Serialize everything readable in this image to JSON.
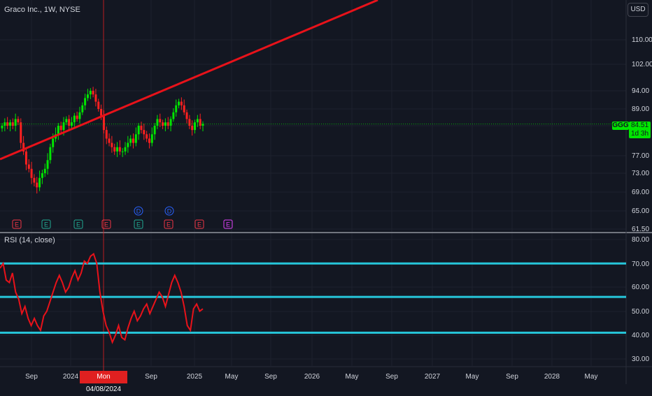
{
  "chart_title": "Graco Inc., 1W, NYSE",
  "currency_button": "USD",
  "symbol": "GGG",
  "last_price": "84.51",
  "countdown": "1d 3h",
  "crosshair_date": "Mon 04/08/2024",
  "price_axis": [
    "110.00",
    "102.00",
    "94.00",
    "89.00",
    "84.00",
    "77.00",
    "73.00",
    "69.00",
    "65.00",
    "61.50"
  ],
  "rsi_title": "RSI (14, close)",
  "rsi_axis": [
    "80.00",
    "70.00",
    "60.00",
    "50.00",
    "40.00",
    "30.00"
  ],
  "time_axis": [
    "Sep",
    "2024",
    "Sep",
    "2025",
    "May",
    "Sep",
    "2026",
    "May",
    "Sep",
    "2027",
    "May",
    "Sep",
    "2028",
    "May"
  ],
  "colors": {
    "background": "#131722",
    "up_candle": "#00e600",
    "down_candle": "#ff2020",
    "trendline": "#e8121a",
    "rsi_line": "#e8121a",
    "rsi_levels": "#26c6da",
    "earnings_marker_past": "#2962ff",
    "earnings_marker_up": "#22ab94",
    "earnings_marker_down": "#f23645",
    "earnings_marker_future": "#e040fb"
  },
  "event_markers": [
    {
      "icon": "earnings",
      "label": "E",
      "color": "#f23645"
    },
    {
      "icon": "earnings",
      "label": "E",
      "color": "#22ab94"
    },
    {
      "icon": "earnings",
      "label": "E",
      "color": "#22ab94"
    },
    {
      "icon": "earnings",
      "label": "E",
      "color": "#f23645"
    },
    {
      "icon": "dividend",
      "label": "D",
      "color": "#2962ff"
    },
    {
      "icon": "earnings",
      "label": "E",
      "color": "#22ab94"
    },
    {
      "icon": "dividend",
      "label": "D",
      "color": "#2962ff"
    },
    {
      "icon": "earnings",
      "label": "E",
      "color": "#f23645"
    },
    {
      "icon": "earnings",
      "label": "E",
      "color": "#f23645"
    },
    {
      "icon": "earnings",
      "label": "E",
      "color": "#e040fb"
    }
  ],
  "chart_data": [
    {
      "type": "candlestick",
      "title": "Graco Inc., 1W, NYSE",
      "ylim": [
        61.5,
        114
      ],
      "ticks": [
        110,
        102,
        94,
        89,
        84,
        77,
        73,
        69,
        65,
        61.5
      ],
      "last_price": 84.51,
      "close": [
        84,
        85,
        84,
        85,
        84,
        86,
        85,
        80,
        78,
        75,
        74,
        72,
        71,
        70,
        72,
        73,
        74,
        76,
        79,
        81,
        82,
        84,
        83,
        85,
        86,
        84,
        85,
        87,
        86,
        88,
        90,
        92,
        93,
        94,
        93,
        91,
        89,
        87,
        83,
        81,
        80,
        79,
        78,
        79,
        78,
        78,
        79,
        80,
        81,
        80,
        82,
        84,
        83,
        82,
        81,
        80,
        82,
        84,
        86,
        85,
        84,
        85,
        84,
        86,
        88,
        90,
        91,
        90,
        88,
        86,
        84,
        83,
        85,
        86,
        84,
        84.51
      ],
      "trendline": [
        {
          "x": 0,
          "y": 77.5
        },
        {
          "x": 1,
          "y": 121
        }
      ]
    },
    {
      "type": "line",
      "title": "RSI (14, close)",
      "ylim": [
        25,
        82
      ],
      "ticks": [
        80,
        70,
        60,
        50,
        40,
        30
      ],
      "levels": [
        70,
        56,
        41
      ],
      "values": [
        68,
        70,
        63,
        62,
        66,
        58,
        55,
        49,
        52,
        47,
        44,
        47,
        44,
        42,
        48,
        50,
        54,
        58,
        62,
        65,
        62,
        58,
        60,
        64,
        67,
        63,
        66,
        71,
        70,
        73,
        74,
        70,
        58,
        50,
        44,
        41,
        37,
        40,
        44,
        39,
        38,
        43,
        47,
        50,
        46,
        48,
        51,
        53,
        49,
        52,
        55,
        58,
        56,
        52,
        57,
        62,
        65,
        62,
        58,
        52,
        44,
        42,
        51,
        53,
        50,
        51
      ]
    }
  ]
}
